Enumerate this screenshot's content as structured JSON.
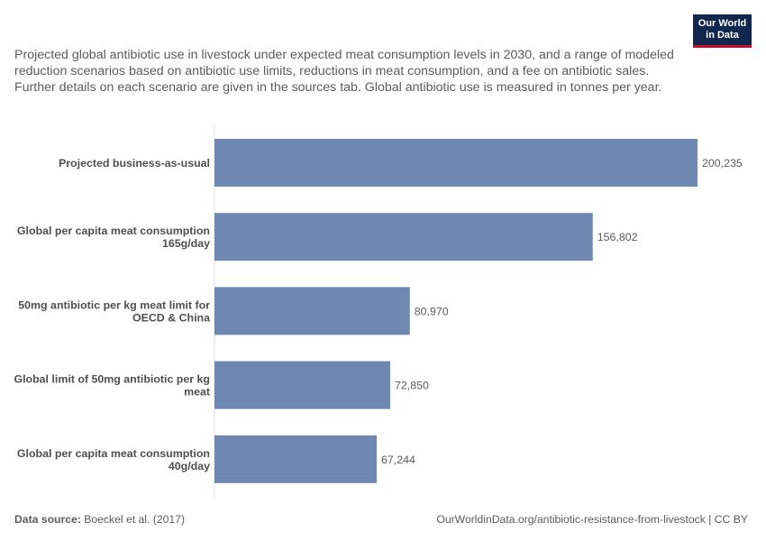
{
  "header": {
    "subtitle": "Projected global antibiotic use in livestock under expected meat consumption levels in 2030, and a range of modeled reduction scenarios based on antibiotic use limits, reductions in meat consumption, and a fee on antibiotic sales. Further details on each scenario are given in the sources tab. Global antibiotic use is measured in tonnes per year.",
    "logo_line1": "Our World",
    "logo_line2": "in Data"
  },
  "footer": {
    "source_label": "Data source:",
    "source_value": "Boeckel et al. (2017)",
    "url": "OurWorldinData.org/antibiotic-resistance-from-livestock | CC BY"
  },
  "colors": {
    "bar": "#6f88b1",
    "logo_bg": "#12274d",
    "logo_accent": "#c8102e"
  },
  "chart_data": {
    "type": "bar",
    "orientation": "horizontal",
    "title": "",
    "xlabel": "",
    "ylabel": "",
    "categories": [
      [
        "Projected business-as-usual"
      ],
      [
        "Global per capita meat consumption",
        "165g/day"
      ],
      [
        "50mg antibiotic per kg meat limit for",
        "OECD & China"
      ],
      [
        "Global limit of 50mg antibiotic per kg",
        "meat"
      ],
      [
        "Global per capita meat consumption",
        "40g/day"
      ]
    ],
    "values": [
      200235,
      156802,
      80970,
      72850,
      67244
    ],
    "value_labels": [
      "200,235",
      "156,802",
      "80,970",
      "72,850",
      "67,244"
    ],
    "xlim": [
      0,
      200235
    ],
    "grid": false,
    "legend": "none"
  }
}
